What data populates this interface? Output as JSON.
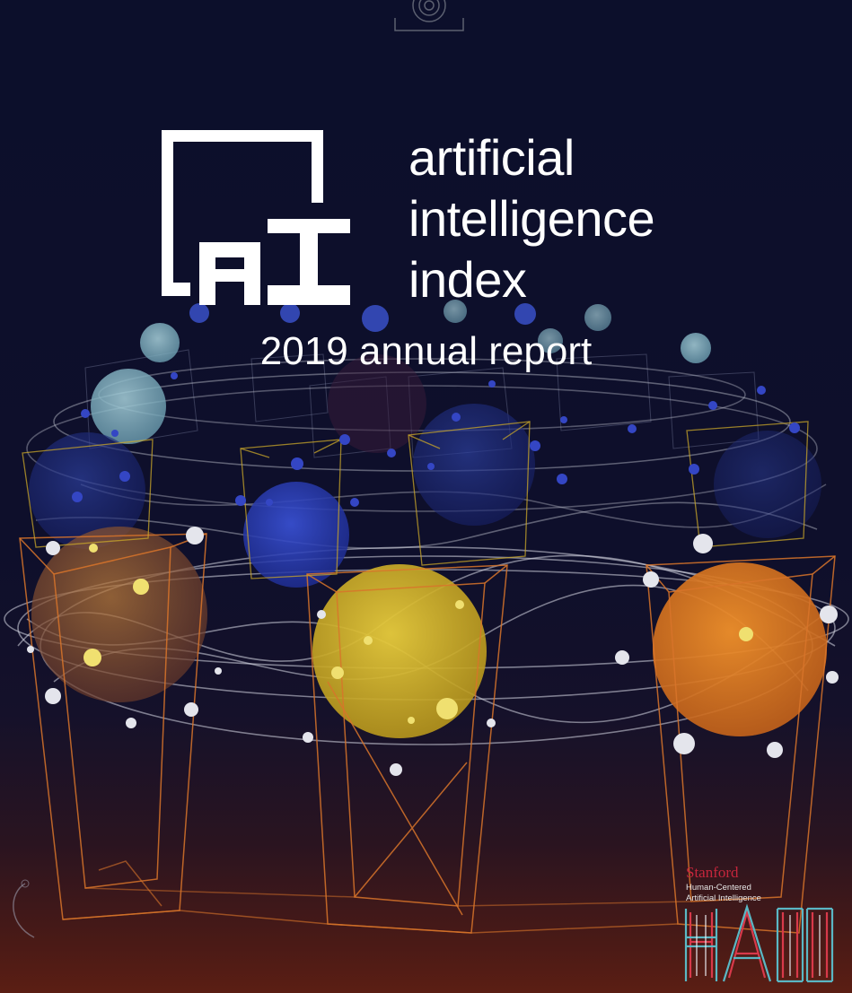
{
  "logo": {
    "mark_letters": "AI",
    "words": [
      "artificial",
      "intelligence",
      "index"
    ]
  },
  "subtitle": "2019 annual report",
  "publisher": {
    "name": "Stanford",
    "line1": "Human-Centered",
    "line2": "Artificial Intelligence",
    "acronym": "HAI"
  },
  "colors": {
    "background_top": "#0c0f2b",
    "background_bottom": "#5b1e14",
    "stanford_red": "#c6263c",
    "sphere_yellow": "#d6b52a",
    "sphere_orange": "#e07a1e",
    "sphere_blue": "#2a3fb0",
    "sphere_teal": "#7fb4c4",
    "wire_orange": "#d8742a",
    "hai_red": "#d8394a",
    "hai_teal": "#5ab7c4"
  }
}
